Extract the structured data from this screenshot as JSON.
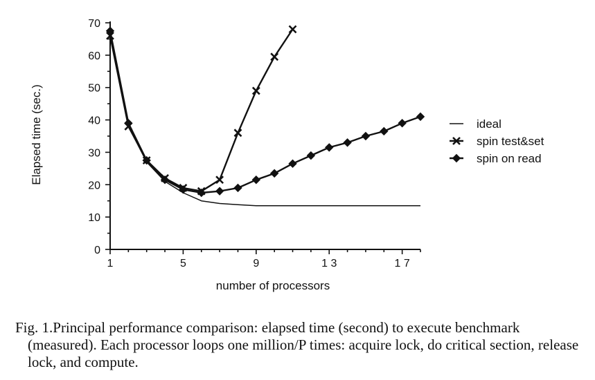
{
  "chart_data": {
    "type": "line",
    "title": "",
    "xlabel": "number of processors",
    "ylabel": "Elapsed time (sec.)",
    "xlim": [
      1,
      18
    ],
    "ylim": [
      0,
      70
    ],
    "xticks": [
      1,
      5,
      9,
      13,
      17
    ],
    "xtick_labels": [
      "1",
      "5",
      "9",
      "1 3",
      "1 7"
    ],
    "yticks": [
      0,
      10,
      20,
      30,
      40,
      50,
      60,
      70
    ],
    "ytick_labels": [
      "0",
      "10",
      "20",
      "30",
      "40",
      "50",
      "60",
      "70"
    ],
    "legend_position": "right",
    "grid": false,
    "series": [
      {
        "name": "ideal",
        "marker": "none",
        "x": [
          1,
          2,
          3,
          4,
          5,
          6,
          7,
          8,
          9,
          10,
          11,
          12,
          13,
          14,
          15,
          16,
          17,
          18
        ],
        "values": [
          67,
          38,
          27,
          21,
          17.5,
          15,
          14.2,
          13.8,
          13.5,
          13.5,
          13.5,
          13.5,
          13.5,
          13.5,
          13.5,
          13.5,
          13.5,
          13.5
        ]
      },
      {
        "name": "spin test&set",
        "marker": "x",
        "x": [
          1,
          2,
          3,
          4,
          5,
          6,
          7,
          8,
          9,
          10,
          11
        ],
        "values": [
          66,
          38,
          27.5,
          22,
          19,
          18,
          21.5,
          36,
          49,
          59.5,
          68
        ]
      },
      {
        "name": "spin on read",
        "marker": "diamond",
        "x": [
          1,
          2,
          3,
          4,
          5,
          6,
          7,
          8,
          9,
          10,
          11,
          12,
          13,
          14,
          15,
          16,
          17,
          18
        ],
        "values": [
          67.5,
          39,
          27.5,
          21.5,
          18.5,
          17.5,
          18,
          19,
          21.5,
          23.5,
          26.5,
          29,
          31.5,
          33,
          35,
          36.5,
          39,
          41
        ]
      }
    ]
  },
  "caption": {
    "text": "Fig. 1.Principal performance comparison: elapsed time (second) to execute benchmark (measured). Each processor loops one million/P times: acquire lock, do critical section, release lock, and compute."
  }
}
